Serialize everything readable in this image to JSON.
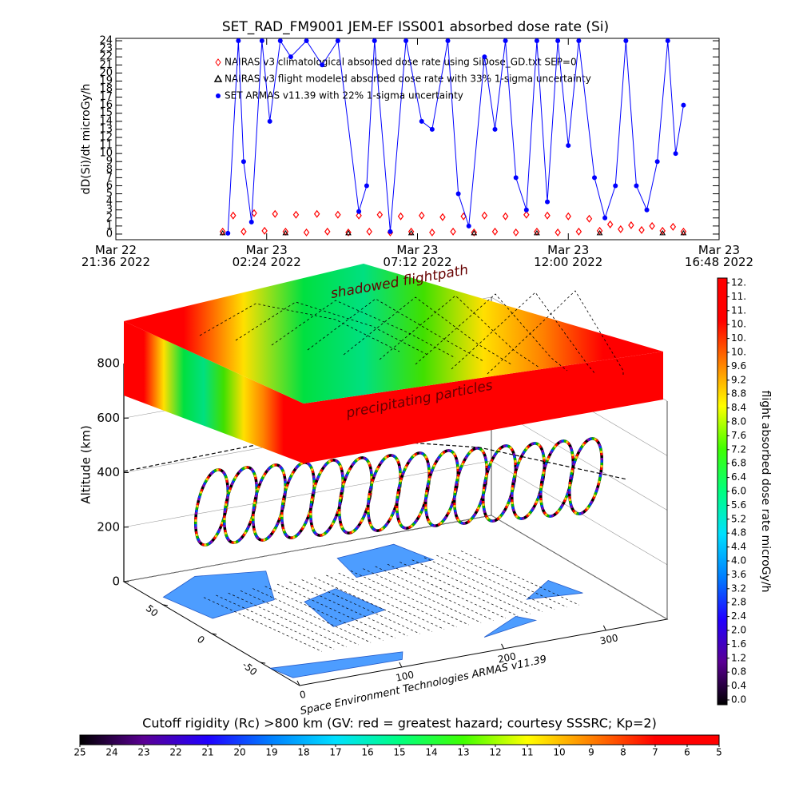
{
  "chart_data": [
    {
      "type": "line",
      "title": "SET_RAD_FM9001  JEM-EF ISS001 absorbed dose rate (Si)",
      "ylabel": "dD(Si)/dt microGy/h",
      "xlim": [
        "2022-03-22T21:36",
        "2022-03-23T16:48"
      ],
      "xticks": [
        {
          "value": "2022-03-22T21:36",
          "label": "Mar 22\n21:36 2022"
        },
        {
          "value": "2022-03-23T02:24",
          "label": "Mar 23\n02:24 2022"
        },
        {
          "value": "2022-03-23T07:12",
          "label": "Mar 23\n07:12 2022"
        },
        {
          "value": "2022-03-23T12:00",
          "label": "Mar 23\n12:00 2022"
        },
        {
          "value": "2022-03-23T16:48",
          "label": "Mar 23\n16:48 2022"
        }
      ],
      "ylim": [
        -0.7,
        24.3
      ],
      "yticks": [
        0,
        1,
        2,
        3,
        4,
        5,
        6,
        7,
        8,
        9,
        10,
        11,
        12,
        13,
        14,
        15,
        16,
        17,
        18,
        19,
        20,
        21,
        22,
        23,
        24
      ],
      "series": [
        {
          "name": "NAIRAS v3 climatological absorbed dose rate using SiDose_GD.txt SEP=0",
          "color": "#ff0000",
          "marker": "diamond",
          "line": false,
          "x": [
            "2022-03-23T01:00",
            "2022-03-23T01:20",
            "2022-03-23T01:40",
            "2022-03-23T02:00",
            "2022-03-23T02:20",
            "2022-03-23T02:40",
            "2022-03-23T03:00",
            "2022-03-23T03:20",
            "2022-03-23T03:40",
            "2022-03-23T04:00",
            "2022-03-23T04:20",
            "2022-03-23T04:40",
            "2022-03-23T05:00",
            "2022-03-23T05:20",
            "2022-03-23T05:40",
            "2022-03-23T06:00",
            "2022-03-23T06:20",
            "2022-03-23T06:40",
            "2022-03-23T07:00",
            "2022-03-23T07:20",
            "2022-03-23T07:40",
            "2022-03-23T08:00",
            "2022-03-23T08:20",
            "2022-03-23T08:40",
            "2022-03-23T09:00",
            "2022-03-23T09:20",
            "2022-03-23T09:40",
            "2022-03-23T10:00",
            "2022-03-23T10:20",
            "2022-03-23T10:40",
            "2022-03-23T11:00",
            "2022-03-23T11:20",
            "2022-03-23T11:40",
            "2022-03-23T12:00",
            "2022-03-23T12:20",
            "2022-03-23T12:40",
            "2022-03-23T13:00",
            "2022-03-23T13:20",
            "2022-03-23T13:40",
            "2022-03-23T14:00",
            "2022-03-23T14:20",
            "2022-03-23T14:40",
            "2022-03-23T15:00",
            "2022-03-23T15:20",
            "2022-03-23T15:40"
          ],
          "values": [
            0.3,
            2.3,
            0.3,
            2.6,
            0.4,
            2.5,
            0.3,
            2.4,
            0.2,
            2.5,
            0.3,
            2.4,
            0.2,
            2.3,
            0.3,
            2.4,
            0.2,
            2.2,
            0.3,
            2.3,
            0.2,
            2.1,
            0.3,
            2.2,
            0.2,
            2.3,
            0.3,
            2.2,
            0.2,
            2.4,
            0.3,
            2.3,
            0.2,
            2.2,
            0.3,
            1.9,
            0.4,
            1.2,
            0.6,
            1.1,
            0.5,
            1.0,
            0.4,
            0.9,
            0.3
          ]
        },
        {
          "name": "NAIRAS v3 flight modeled absorbed dose rate with 33% 1-sigma uncertainty",
          "color": "#000000",
          "marker": "triangle",
          "line": false,
          "x": [
            "2022-03-23T01:00",
            "2022-03-23T03:00",
            "2022-03-23T05:00",
            "2022-03-23T07:00",
            "2022-03-23T09:00",
            "2022-03-23T11:00",
            "2022-03-23T13:00",
            "2022-03-23T15:00",
            "2022-03-23T15:40"
          ],
          "values": [
            0.1,
            0.1,
            0.1,
            0.1,
            0.1,
            0.1,
            0.1,
            0.1,
            0.1
          ]
        },
        {
          "name": "SET ARMAS v11.39 with 22% 1-sigma uncertainty",
          "color": "#0000ff",
          "marker": "circle",
          "line": true,
          "x": [
            "2022-03-23T01:10",
            "2022-03-23T01:30",
            "2022-03-23T01:40",
            "2022-03-23T01:55",
            "2022-03-23T02:15",
            "2022-03-23T02:30",
            "2022-03-23T02:50",
            "2022-03-23T03:10",
            "2022-03-23T03:40",
            "2022-03-23T04:10",
            "2022-03-23T04:40",
            "2022-03-23T05:20",
            "2022-03-23T05:35",
            "2022-03-23T05:50",
            "2022-03-23T06:20",
            "2022-03-23T06:50",
            "2022-03-23T07:20",
            "2022-03-23T07:40",
            "2022-03-23T08:10",
            "2022-03-23T08:30",
            "2022-03-23T08:50",
            "2022-03-23T09:20",
            "2022-03-23T09:40",
            "2022-03-23T10:00",
            "2022-03-23T10:20",
            "2022-03-23T10:40",
            "2022-03-23T11:00",
            "2022-03-23T11:20",
            "2022-03-23T11:40",
            "2022-03-23T12:00",
            "2022-03-23T12:20",
            "2022-03-23T12:50",
            "2022-03-23T13:10",
            "2022-03-23T13:30",
            "2022-03-23T13:50",
            "2022-03-23T14:10",
            "2022-03-23T14:30",
            "2022-03-23T14:50",
            "2022-03-23T15:10",
            "2022-03-23T15:25",
            "2022-03-23T15:40"
          ],
          "values": [
            0.1,
            24,
            9,
            1.5,
            24,
            14,
            24,
            22,
            24,
            21,
            24,
            2.8,
            6,
            24,
            0.3,
            24,
            14,
            13,
            24,
            5,
            1.0,
            22,
            13,
            24,
            7,
            3,
            24,
            4,
            24,
            11,
            24,
            7,
            2,
            6,
            24,
            6,
            3,
            9,
            24,
            10,
            16
          ]
        }
      ]
    },
    {
      "type": "colorbar",
      "orientation": "vertical",
      "label": "flight absorbed dose rate microGy/h",
      "lim": [
        0,
        12
      ],
      "colors": [
        "#000000",
        "#5a0094",
        "#2000ff",
        "#0080ff",
        "#00e0ff",
        "#00ff80",
        "#40ff00",
        "#ffff00",
        "#ff8000",
        "#ff0000",
        "#ff0000"
      ],
      "ticks": [
        {
          "value": 0,
          "label": "0.0"
        },
        {
          "value": 0.4,
          "label": "0.4"
        },
        {
          "value": 0.8,
          "label": "0.8"
        },
        {
          "value": 1.2,
          "label": "1.2"
        },
        {
          "value": 1.6,
          "label": "1.6"
        },
        {
          "value": 2,
          "label": "2.0"
        },
        {
          "value": 2.4,
          "label": "2.4"
        },
        {
          "value": 2.8,
          "label": "2.8"
        },
        {
          "value": 3.2,
          "label": "3.2"
        },
        {
          "value": 3.6,
          "label": "3.6"
        },
        {
          "value": 4,
          "label": "4.0"
        },
        {
          "value": 4.4,
          "label": "4.4"
        },
        {
          "value": 4.8,
          "label": "4.8"
        },
        {
          "value": 5.2,
          "label": "5.2"
        },
        {
          "value": 5.6,
          "label": "5.6"
        },
        {
          "value": 6,
          "label": "6.0"
        },
        {
          "value": 6.4,
          "label": "6.4"
        },
        {
          "value": 6.8,
          "label": "6.8"
        },
        {
          "value": 7.2,
          "label": "7.2"
        },
        {
          "value": 7.6,
          "label": "7.6"
        },
        {
          "value": 8,
          "label": "8.0"
        },
        {
          "value": 8.4,
          "label": "8.4"
        },
        {
          "value": 8.8,
          "label": "8.8"
        },
        {
          "value": 9.2,
          "label": "9.2"
        },
        {
          "value": 9.6,
          "label": "9.6"
        },
        {
          "value": 10,
          "label": "10."
        },
        {
          "value": 10.4,
          "label": "10."
        },
        {
          "value": 10.8,
          "label": "10."
        },
        {
          "value": 11.2,
          "label": "11."
        },
        {
          "value": 11.6,
          "label": "11."
        },
        {
          "value": 12,
          "label": "12."
        }
      ]
    },
    {
      "type": "colorbar",
      "orientation": "horizontal",
      "label": "Cutoff rigidity (Rc) >800 km (GV: red = greatest hazard; courtesy SSSRC; Kp=2)",
      "lim": [
        25,
        5
      ],
      "colors": [
        "#000000",
        "#5a0094",
        "#2000ff",
        "#0080ff",
        "#00e0ff",
        "#00ff80",
        "#40ff00",
        "#ffff00",
        "#ff8000",
        "#ff0000",
        "#ff0000"
      ],
      "ticks": [
        25,
        24,
        23,
        22,
        21,
        20,
        19,
        18,
        17,
        16,
        15,
        14,
        13,
        12,
        11,
        10,
        9,
        8,
        7,
        6,
        5
      ]
    },
    {
      "type": "scene3d",
      "zlabel": "Altitude (km)",
      "zlim": [
        0,
        800
      ],
      "zticks": [
        0,
        200,
        400,
        600,
        800
      ],
      "latlim": [
        -90,
        90
      ],
      "latticks": [
        -50,
        0,
        50
      ],
      "lonlim": [
        0,
        360
      ],
      "lonticks": [
        0,
        100,
        200,
        300
      ],
      "annotations": [
        "shadowed flightpath",
        "precipitating particles"
      ],
      "credit": "Space Environment Technologies ARMAS v11.39"
    }
  ]
}
